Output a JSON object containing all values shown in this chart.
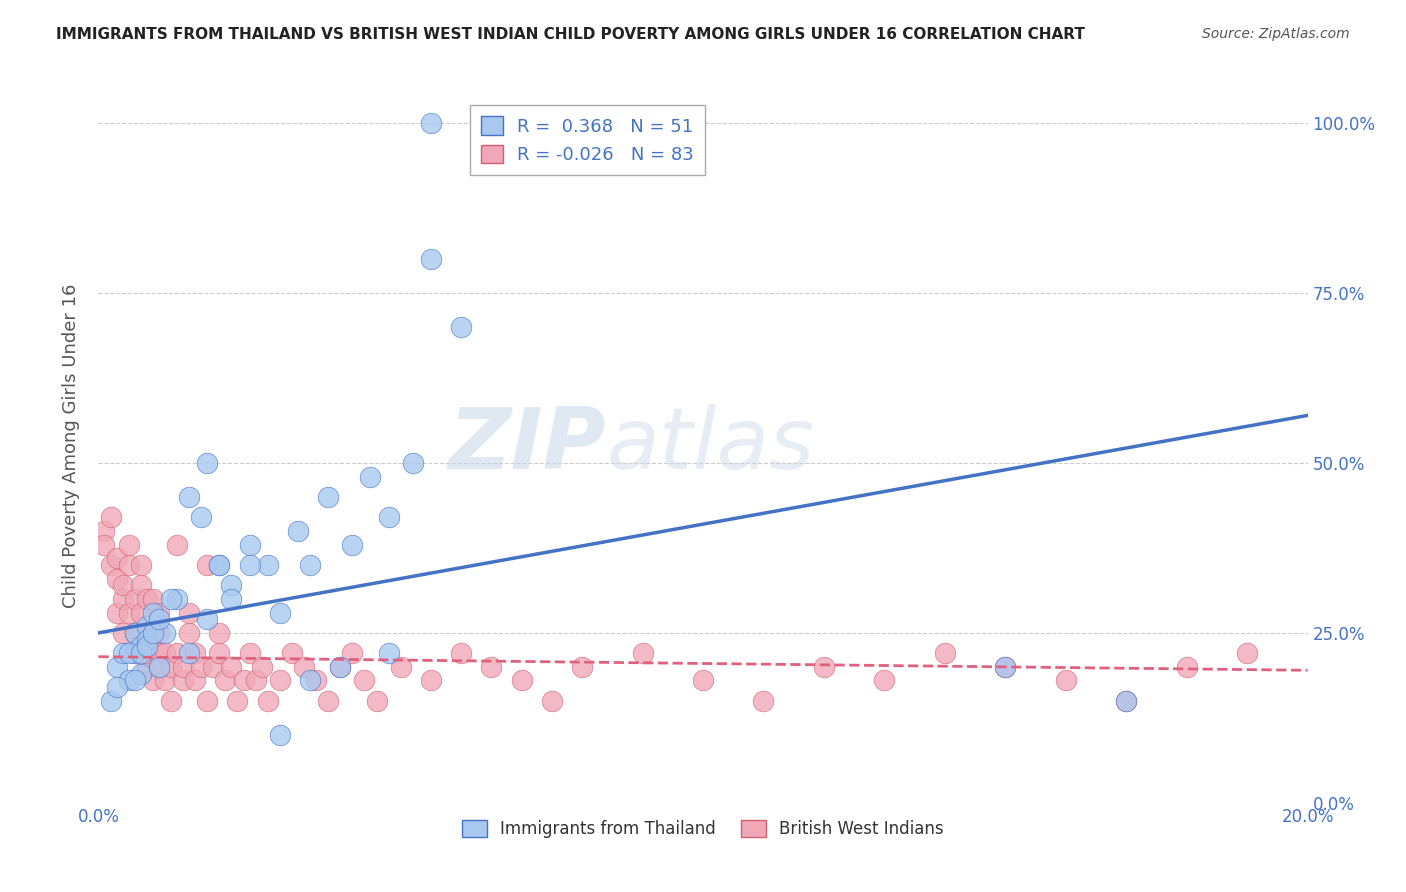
{
  "title": "IMMIGRANTS FROM THAILAND VS BRITISH WEST INDIAN CHILD POVERTY AMONG GIRLS UNDER 16 CORRELATION CHART",
  "source": "Source: ZipAtlas.com",
  "ylabel": "Child Poverty Among Girls Under 16",
  "legend_blue_label": "Immigrants from Thailand",
  "legend_pink_label": "British West Indians",
  "blue_R": 0.368,
  "blue_N": 51,
  "pink_R": -0.026,
  "pink_N": 83,
  "xlim": [
    0.0,
    0.2
  ],
  "ylim": [
    0.0,
    1.05
  ],
  "yticks": [
    0.0,
    0.25,
    0.5,
    0.75,
    1.0
  ],
  "ytick_labels": [
    "0.0%",
    "25.0%",
    "50.0%",
    "75.0%",
    "100.0%"
  ],
  "xticks": [
    0.0,
    0.05,
    0.1,
    0.15,
    0.2
  ],
  "xtick_labels": [
    "0.0%",
    "",
    "",
    "",
    "20.0%"
  ],
  "blue_color": "#a8c8f0",
  "pink_color": "#f0a8b8",
  "blue_line_color": "#4472c4",
  "pink_line_color": "#e06080",
  "watermark_zip": "ZIP",
  "watermark_atlas": "atlas",
  "background_color": "#ffffff",
  "grid_color": "#cccccc",
  "blue_line_x": [
    0.0,
    0.2
  ],
  "blue_line_y": [
    0.25,
    0.57
  ],
  "pink_line_x": [
    0.0,
    0.2
  ],
  "pink_line_y": [
    0.215,
    0.195
  ],
  "blue_x": [
    0.003,
    0.004,
    0.005,
    0.006,
    0.006,
    0.007,
    0.007,
    0.008,
    0.008,
    0.009,
    0.01,
    0.011,
    0.013,
    0.015,
    0.017,
    0.018,
    0.02,
    0.022,
    0.025,
    0.028,
    0.03,
    0.033,
    0.035,
    0.038,
    0.042,
    0.045,
    0.048,
    0.052,
    0.055,
    0.002,
    0.003,
    0.005,
    0.006,
    0.007,
    0.008,
    0.009,
    0.01,
    0.012,
    0.015,
    0.018,
    0.02,
    0.022,
    0.025,
    0.03,
    0.035,
    0.04,
    0.048,
    0.06,
    0.15,
    0.17,
    0.055
  ],
  "blue_y": [
    0.2,
    0.22,
    0.18,
    0.25,
    0.22,
    0.19,
    0.23,
    0.26,
    0.24,
    0.28,
    0.2,
    0.25,
    0.3,
    0.45,
    0.42,
    0.5,
    0.35,
    0.32,
    0.38,
    0.35,
    0.28,
    0.4,
    0.35,
    0.45,
    0.38,
    0.48,
    0.42,
    0.5,
    0.8,
    0.15,
    0.17,
    0.22,
    0.18,
    0.22,
    0.23,
    0.25,
    0.27,
    0.3,
    0.22,
    0.27,
    0.35,
    0.3,
    0.35,
    0.1,
    0.18,
    0.2,
    0.22,
    0.7,
    0.2,
    0.15,
    1.0
  ],
  "pink_x": [
    0.001,
    0.001,
    0.002,
    0.002,
    0.003,
    0.003,
    0.003,
    0.004,
    0.004,
    0.004,
    0.005,
    0.005,
    0.005,
    0.006,
    0.006,
    0.006,
    0.007,
    0.007,
    0.007,
    0.008,
    0.008,
    0.008,
    0.008,
    0.009,
    0.009,
    0.009,
    0.01,
    0.01,
    0.01,
    0.01,
    0.011,
    0.011,
    0.012,
    0.012,
    0.013,
    0.013,
    0.014,
    0.014,
    0.015,
    0.015,
    0.016,
    0.016,
    0.017,
    0.018,
    0.018,
    0.019,
    0.02,
    0.02,
    0.021,
    0.022,
    0.023,
    0.024,
    0.025,
    0.026,
    0.027,
    0.028,
    0.03,
    0.032,
    0.034,
    0.036,
    0.038,
    0.04,
    0.042,
    0.044,
    0.046,
    0.05,
    0.055,
    0.06,
    0.065,
    0.07,
    0.075,
    0.08,
    0.09,
    0.1,
    0.11,
    0.12,
    0.13,
    0.14,
    0.15,
    0.16,
    0.17,
    0.18,
    0.19
  ],
  "pink_y": [
    0.4,
    0.38,
    0.35,
    0.42,
    0.28,
    0.33,
    0.36,
    0.3,
    0.25,
    0.32,
    0.35,
    0.28,
    0.38,
    0.3,
    0.25,
    0.22,
    0.35,
    0.28,
    0.32,
    0.2,
    0.3,
    0.25,
    0.22,
    0.18,
    0.3,
    0.25,
    0.28,
    0.22,
    0.2,
    0.25,
    0.22,
    0.18,
    0.2,
    0.15,
    0.38,
    0.22,
    0.18,
    0.2,
    0.25,
    0.28,
    0.22,
    0.18,
    0.2,
    0.15,
    0.35,
    0.2,
    0.22,
    0.25,
    0.18,
    0.2,
    0.15,
    0.18,
    0.22,
    0.18,
    0.2,
    0.15,
    0.18,
    0.22,
    0.2,
    0.18,
    0.15,
    0.2,
    0.22,
    0.18,
    0.15,
    0.2,
    0.18,
    0.22,
    0.2,
    0.18,
    0.15,
    0.2,
    0.22,
    0.18,
    0.15,
    0.2,
    0.18,
    0.22,
    0.2,
    0.18,
    0.15,
    0.2,
    0.22
  ]
}
